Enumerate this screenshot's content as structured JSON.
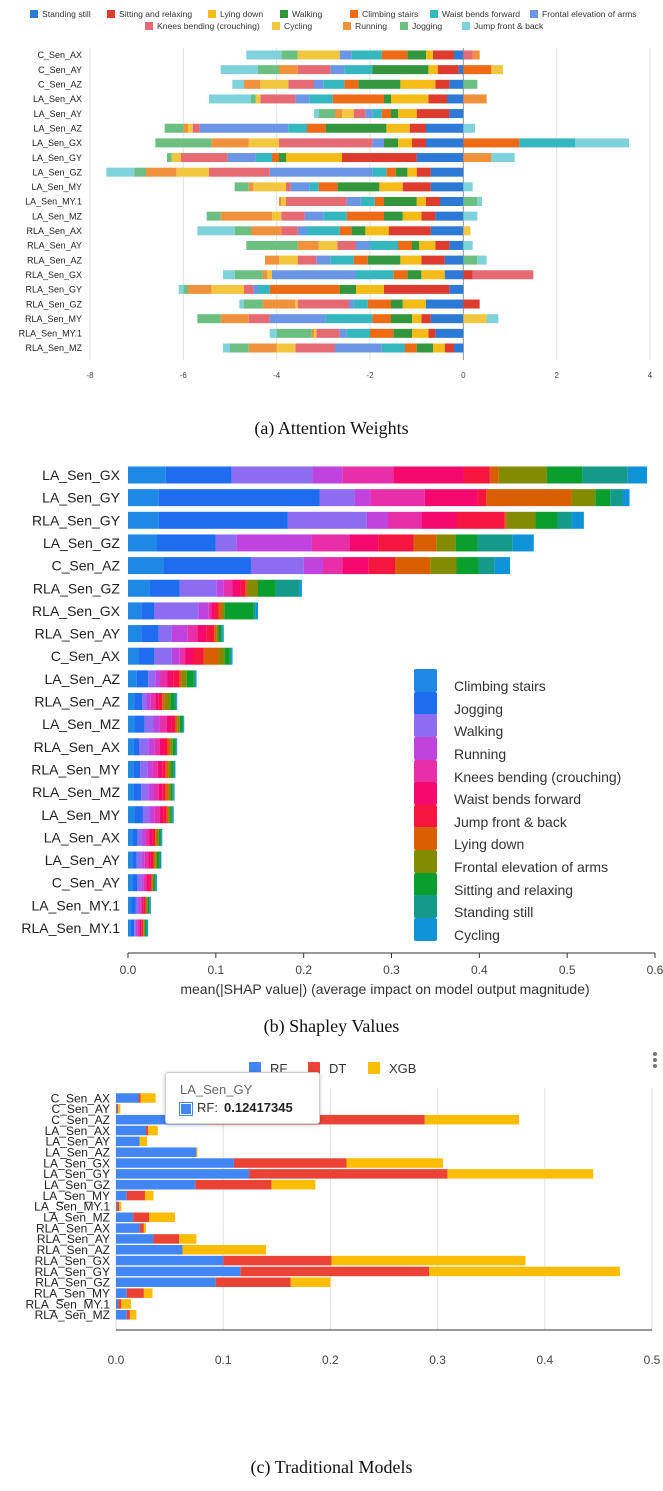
{
  "captions": {
    "a": "(a) Attention Weights",
    "b": "(b) Shapley Values",
    "c": "(c) Traditional Models"
  },
  "tooltip": {
    "title": "LA_Sen_GY",
    "series": "RF:",
    "value": "0.12417345"
  },
  "chart_data": [
    {
      "type": "bar",
      "title": "",
      "stacked": true,
      "orientation": "horizontal",
      "xlim": [
        -8,
        4
      ],
      "xticks": [
        -8,
        -6,
        -4,
        -2,
        0,
        2,
        4
      ],
      "grid": true,
      "legend_position": "top",
      "categories": [
        "C_Sen_AX",
        "C_Sen_AY",
        "C_Sen_AZ",
        "LA_Sen_AX",
        "LA_Sen_AY",
        "LA_Sen_AZ",
        "LA_Sen_GX",
        "LA_Sen_GY",
        "LA_Sen_GZ",
        "LA_Sen_MY",
        "LA_Sen_MY.1",
        "LA_Sen_MZ",
        "RLA_Sen_AX",
        "RLA_Sen_AY",
        "RLA_Sen_AZ",
        "RLA_Sen_GX",
        "RLA_Sen_GY",
        "RLA_Sen_GZ",
        "RLA_Sen_MY",
        "RLA_Sen_MY.1",
        "RLA_Sen_MZ"
      ],
      "series": [
        {
          "name": "Standing still",
          "color": "#2d79d6",
          "values": [
            -0.2,
            -0.1,
            -0.3,
            -0.35,
            -0.3,
            -0.8,
            -0.8,
            -1,
            -0.7,
            -0.7,
            -0.5,
            -0.6,
            -0.7,
            -0.3,
            -0.4,
            -0.4,
            -0.3,
            -0.8,
            -0.7,
            -0.6,
            -0.2
          ]
        },
        {
          "name": "Sitting and relaxing",
          "color": "#dc3b2d",
          "values": [
            -0.45,
            -0.45,
            -0.3,
            -0.4,
            -0.7,
            -0.35,
            -0.3,
            -1.6,
            -0.3,
            -0.6,
            -0.3,
            -0.3,
            -0.9,
            -0.3,
            -0.5,
            0.2,
            -1.4,
            0.35,
            -0.2,
            -0.15,
            -0.2
          ]
        },
        {
          "name": "Lying down",
          "color": "#f5bc18",
          "values": [
            -0.15,
            -0.2,
            -0.75,
            -0.8,
            -0.4,
            -0.5,
            -0.3,
            -1.2,
            -0.2,
            -0.5,
            -0.2,
            -0.4,
            -0.5,
            -0.35,
            -0.45,
            -0.5,
            -0.6,
            -0.5,
            -0.2,
            -0.35,
            -0.25
          ]
        },
        {
          "name": "Walking",
          "color": "#33963d",
          "values": [
            -0.4,
            -1.2,
            -0.9,
            -0.15,
            -0.15,
            -1.3,
            -0.3,
            -0.15,
            -0.25,
            -0.9,
            -0.7,
            -0.4,
            -0.3,
            -0.15,
            -0.7,
            -0.3,
            -0.35,
            -0.25,
            -0.45,
            -0.4,
            -0.35
          ]
        },
        {
          "name": "Climbing stairs",
          "color": "#ef6a14",
          "values": [
            -0.55,
            0.6,
            -0.3,
            -1.1,
            -0.2,
            -0.4,
            1.2,
            -0.15,
            -0.2,
            -0.4,
            -0.2,
            -0.8,
            -0.25,
            -0.3,
            -0.3,
            -0.3,
            -1.5,
            -0.5,
            -0.4,
            -0.5,
            -0.25
          ]
        },
        {
          "name": "Waist bends forward",
          "color": "#35b7c0",
          "values": [
            -0.65,
            -0.6,
            -0.45,
            -0.5,
            -0.2,
            -0.4,
            1.2,
            -0.35,
            -0.3,
            -0.2,
            -0.3,
            -0.5,
            -0.7,
            -0.6,
            -0.5,
            -0.8,
            -0.25,
            -0.3,
            -1,
            -0.5,
            -0.5
          ]
        },
        {
          "name": "Frontal elevation of arms",
          "color": "#6b96e6",
          "values": [
            -0.25,
            -0.3,
            -0.2,
            -0.3,
            -0.15,
            -1.9,
            -0.25,
            -0.6,
            -2.2,
            -0.4,
            -0.3,
            -0.4,
            -0.2,
            -0.3,
            -0.3,
            -1.8,
            -0.1,
            -0.1,
            -1.2,
            -0.15,
            -1
          ]
        },
        {
          "name": "Knees bending (crouching)",
          "color": "#e56a74",
          "values": [
            0.2,
            -0.7,
            -0.55,
            -0.75,
            -0.25,
            -0.15,
            -2,
            -1,
            -1.3,
            -0.1,
            -1.3,
            -0.5,
            -0.35,
            -0.4,
            -0.4,
            1.3,
            -0.2,
            -1.1,
            -0.45,
            -0.5,
            -0.85
          ]
        },
        {
          "name": "Cycling",
          "color": "#f2c63e",
          "values": [
            -0.9,
            0.25,
            -0.6,
            -0.1,
            -0.25,
            -0.1,
            -0.65,
            -0.2,
            -0.7,
            -0.7,
            -0.1,
            -0.2,
            0.15,
            -0.4,
            -0.4,
            -0.1,
            -0.7,
            -0.05,
            0.5,
            -0.05,
            -0.4
          ]
        },
        {
          "name": "Running",
          "color": "#f0913c",
          "values": [
            0.15,
            -0.4,
            -0.35,
            0.5,
            -0.15,
            -0.1,
            -0.8,
            0.6,
            -0.65,
            -0.1,
            -0.05,
            -1.1,
            -0.65,
            -0.45,
            -0.3,
            -0.1,
            -0.5,
            -0.7,
            -0.6,
            -0.05,
            -0.6
          ]
        },
        {
          "name": "Jogging",
          "color": "#6cbf80",
          "values": [
            -0.35,
            -0.45,
            0.3,
            -0.1,
            -0.35,
            -0.4,
            -1.2,
            -0.1,
            -0.25,
            -0.3,
            0.3,
            -0.3,
            -0.35,
            -1.1,
            0.3,
            -0.6,
            -0.1,
            -0.4,
            -0.5,
            -0.75,
            -0.4
          ]
        },
        {
          "name": "Jump front & back",
          "color": "#7ed2db",
          "values": [
            -0.75,
            -0.8,
            -0.25,
            -0.9,
            -0.1,
            0.25,
            1.15,
            0.5,
            -0.6,
            0.2,
            0.1,
            0.3,
            -0.8,
            0.2,
            0.2,
            -0.25,
            -0.1,
            -0.1,
            0.25,
            -0.15,
            -0.15
          ]
        }
      ]
    },
    {
      "type": "bar",
      "title": "",
      "stacked": true,
      "orientation": "horizontal",
      "xlabel": "mean(|SHAP value|) (average impact on model output magnitude)",
      "xlim": [
        0,
        0.6
      ],
      "xticks": [
        0,
        0.1,
        0.2,
        0.3,
        0.4,
        0.5,
        0.6
      ],
      "tick_labels": [
        "0.0",
        "0.1",
        "0.2",
        "0.3",
        "0.4",
        "0.5",
        "0.6"
      ],
      "grid": false,
      "legend_position": "bottom-right",
      "categories": [
        "LA_Sen_GX",
        "LA_Sen_GY",
        "RLA_Sen_GY",
        "LA_Sen_GZ",
        "C_Sen_AZ",
        "RLA_Sen_GZ",
        "RLA_Sen_GX",
        "RLA_Sen_AY",
        "C_Sen_AX",
        "LA_Sen_AZ",
        "RLA_Sen_AZ",
        "LA_Sen_MZ",
        "RLA_Sen_AX",
        "RLA_Sen_MY",
        "RLA_Sen_MZ",
        "LA_Sen_MY",
        "LA_Sen_AX",
        "LA_Sen_AY",
        "C_Sen_AY",
        "LA_Sen_MY.1",
        "RLA_Sen_MY.1"
      ],
      "series": [
        {
          "name": "Climbing stairs",
          "color": "#1e88e5",
          "values": [
            0.043,
            0.035,
            0.035,
            0.033,
            0.04,
            0.025,
            0.015,
            0.015,
            0.012,
            0.01,
            0.007,
            0.008,
            0.006,
            0.006,
            0.006,
            0.007,
            0.005,
            0.005,
            0.005,
            0.004,
            0.003
          ]
        },
        {
          "name": "Jogging",
          "color": "#1e6cf0",
          "values": [
            0.075,
            0.183,
            0.147,
            0.067,
            0.1,
            0.034,
            0.015,
            0.02,
            0.018,
            0.013,
            0.009,
            0.011,
            0.007,
            0.008,
            0.009,
            0.01,
            0.006,
            0.005,
            0.006,
            0.005,
            0.004
          ]
        },
        {
          "name": "Walking",
          "color": "#8e6cef",
          "values": [
            0.092,
            0.04,
            0.09,
            0.024,
            0.06,
            0.042,
            0.05,
            0.015,
            0.02,
            0.008,
            0.005,
            0.01,
            0.01,
            0.008,
            0.008,
            0.007,
            0.005,
            0.005,
            0.004,
            0.003,
            0.002
          ]
        },
        {
          "name": "Running",
          "color": "#c043e0",
          "values": [
            0.034,
            0.018,
            0.024,
            0.085,
            0.022,
            0.008,
            0.012,
            0.018,
            0.009,
            0.006,
            0.005,
            0.007,
            0.007,
            0.006,
            0.006,
            0.006,
            0.004,
            0.004,
            0.003,
            0.002,
            0.002
          ]
        },
        {
          "name": "Knees bending (crouching)",
          "color": "#e62fa8",
          "values": [
            0.058,
            0.062,
            0.038,
            0.043,
            0.022,
            0.01,
            0.003,
            0.011,
            0.006,
            0.008,
            0.005,
            0.008,
            0.006,
            0.006,
            0.006,
            0.006,
            0.004,
            0.004,
            0.003,
            0.002,
            0.002
          ]
        },
        {
          "name": "Waist bends forward",
          "color": "#f5096e",
          "values": [
            0.08,
            0.06,
            0.04,
            0.033,
            0.03,
            0.009,
            0.004,
            0.01,
            0.009,
            0.007,
            0.004,
            0.006,
            0.005,
            0.005,
            0.004,
            0.004,
            0.004,
            0.003,
            0.003,
            0.002,
            0.002
          ]
        },
        {
          "name": "Jump front & back",
          "color": "#f5153f",
          "values": [
            0.03,
            0.01,
            0.055,
            0.04,
            0.03,
            0.006,
            0.004,
            0.009,
            0.012,
            0.007,
            0.004,
            0.004,
            0.004,
            0.004,
            0.004,
            0.004,
            0.003,
            0.003,
            0.003,
            0.002,
            0.002
          ]
        },
        {
          "name": "Lying down",
          "color": "#d95f02",
          "values": [
            0.01,
            0.097,
            0.002,
            0.026,
            0.04,
            0.002,
            0.004,
            0.003,
            0.017,
            0.002,
            0.003,
            0.002,
            0.003,
            0.003,
            0.003,
            0.002,
            0.002,
            0.002,
            0.001,
            0.001,
            0.001
          ]
        },
        {
          "name": "Frontal elevation of arms",
          "color": "#838b00",
          "values": [
            0.055,
            0.027,
            0.033,
            0.022,
            0.03,
            0.012,
            0.003,
            0.002,
            0.007,
            0.006,
            0.006,
            0.003,
            0.003,
            0.003,
            0.003,
            0.002,
            0.002,
            0.002,
            0.001,
            0.001,
            0.001
          ]
        },
        {
          "name": "Sitting and relaxing",
          "color": "#0a9e2f",
          "values": [
            0.04,
            0.017,
            0.025,
            0.025,
            0.025,
            0.02,
            0.033,
            0.003,
            0.006,
            0.008,
            0.005,
            0.003,
            0.003,
            0.003,
            0.002,
            0.002,
            0.002,
            0.003,
            0.002,
            0.002,
            0.002
          ]
        },
        {
          "name": "Standing still",
          "color": "#15998b",
          "values": [
            0.052,
            0.014,
            0.016,
            0.04,
            0.018,
            0.027,
            0.002,
            0.002,
            0.002,
            0.002,
            0.002,
            0.001,
            0.001,
            0.001,
            0.001,
            0.001,
            0.001,
            0.001,
            0.001,
            0.001,
            0.001
          ]
        },
        {
          "name": "Cycling",
          "color": "#0e93d8",
          "values": [
            0.022,
            0.008,
            0.014,
            0.024,
            0.018,
            0.003,
            0.003,
            0.001,
            0.001,
            0.001,
            0.001,
            0.001,
            0.001,
            0.001,
            0.001,
            0.001,
            0.001,
            0.001,
            0.001,
            0.001,
            0.001
          ]
        }
      ]
    },
    {
      "type": "bar",
      "title": "",
      "stacked": true,
      "orientation": "horizontal",
      "xlim": [
        0,
        0.5
      ],
      "xticks": [
        0,
        0.1,
        0.2,
        0.3,
        0.4,
        0.5
      ],
      "tick_labels": [
        "0.0",
        "0.1",
        "0.2",
        "0.3",
        "0.4",
        "0.5"
      ],
      "grid": true,
      "legend_position": "top",
      "categories": [
        "C_Sen_AX",
        "C_Sen_AY",
        "C_Sen_AZ",
        "LA_Sen_AX",
        "LA_Sen_AY",
        "LA_Sen_AZ",
        "LA_Sen_GX",
        "LA_Sen_GY",
        "LA_Sen_GZ",
        "LA_Sen_MY",
        "LA_Sen_MY.1",
        "LA_Sen_MZ",
        "RLA_Sen_AX",
        "RLA_Sen_AY",
        "RLA_Sen_AZ",
        "RLA_Sen_GX",
        "RLA_Sen_GY",
        "RLA_Sen_GZ",
        "RLA_Sen_MY",
        "RLA_Sen_MY.1",
        "RLA_Sen_MZ"
      ],
      "series": [
        {
          "name": "RF",
          "color": "#4285f4",
          "values": [
            0.021,
            0.001,
            0.085,
            0.028,
            0.022,
            0.075,
            0.11,
            0.12417345,
            0.074,
            0.01,
            0.001,
            0.016,
            0.022,
            0.035,
            0.062,
            0.1,
            0.116,
            0.093,
            0.01,
            0.002,
            0.01
          ]
        },
        {
          "name": "DT",
          "color": "#ea4335",
          "values": [
            0.002,
            0.001,
            0.203,
            0.002,
            0,
            0,
            0.105,
            0.185,
            0.071,
            0.017,
            0.002,
            0.015,
            0.004,
            0.024,
            0,
            0.101,
            0.176,
            0.07,
            0.016,
            0.003,
            0.003
          ]
        },
        {
          "name": "XGB",
          "color": "#fbbc04",
          "values": [
            0.014,
            0.002,
            0.088,
            0.009,
            0.007,
            0.001,
            0.09,
            0.136,
            0.041,
            0.008,
            0.002,
            0.024,
            0.002,
            0.016,
            0.078,
            0.181,
            0.178,
            0.037,
            0.008,
            0.009,
            0.006
          ]
        }
      ]
    }
  ]
}
